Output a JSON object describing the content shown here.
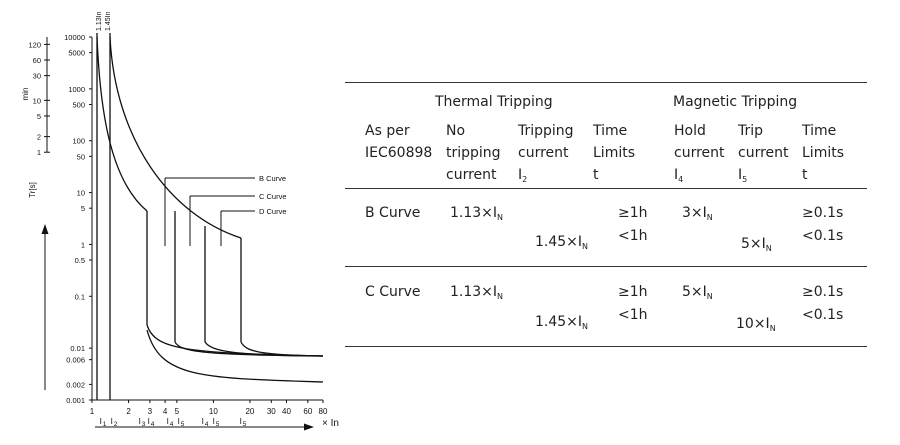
{
  "chart": {
    "y_axis_min_ticks": [
      "120",
      "60",
      "30",
      "10",
      "5",
      "2",
      "1"
    ],
    "y_axis_min_label": "min",
    "y_axis_sec_ticks": [
      "10000",
      "5000",
      "1000",
      "500",
      "100",
      "50",
      "10",
      "5",
      "1",
      "0.5",
      "0.1",
      "0.01",
      "0.006",
      "0.002",
      "0.001"
    ],
    "y_axis_sec_label": "Tr[s]",
    "x_axis_ticks": [
      "1",
      "2",
      "3",
      "4",
      "5",
      "10",
      "20",
      "30",
      "40",
      "60",
      "80"
    ],
    "x_axis_label": "× In",
    "top_labels": [
      "1.13In",
      "1.45In"
    ],
    "current_markers": [
      {
        "letter": "I",
        "sub": "1"
      },
      {
        "letter": "I",
        "sub": "2"
      },
      {
        "letter": "I",
        "sub": "3"
      },
      {
        "letter": "I",
        "sub": "4"
      },
      {
        "letter": "I",
        "sub": "4"
      },
      {
        "letter": "I",
        "sub": "5"
      },
      {
        "letter": "I",
        "sub": "4"
      },
      {
        "letter": "I",
        "sub": "5"
      },
      {
        "letter": "I",
        "sub": "5"
      }
    ],
    "curve_labels": [
      "B Curve",
      "C Curve",
      "D Curve"
    ]
  },
  "chart_data": {
    "type": "line",
    "title": "",
    "xlabel": "× In",
    "ylabel": "Tr[s]",
    "x_scale": "log",
    "y_scale": "log",
    "xlim": [
      1,
      80
    ],
    "ylim": [
      0.001,
      10000
    ],
    "series": [
      {
        "name": "B Curve",
        "x": [
          3,
          3.5,
          5,
          10,
          20,
          80
        ],
        "y": [
          0.02,
          0.01,
          0.008,
          0.0075,
          0.007,
          0.0065
        ]
      },
      {
        "name": "C Curve",
        "x": [
          5,
          6,
          10,
          20,
          80
        ],
        "y": [
          0.02,
          0.009,
          0.0075,
          0.007,
          0.0065
        ]
      },
      {
        "name": "D Curve",
        "x": [
          10,
          12,
          20,
          80
        ],
        "y": [
          0.02,
          0.009,
          0.007,
          0.0065
        ]
      }
    ]
  },
  "table": {
    "group_headers": [
      "Thermal Tripping",
      "Magnetic Tripping"
    ],
    "col_headers": [
      [
        "As per",
        "IEC60898"
      ],
      [
        "No",
        "tripping",
        "current"
      ],
      [
        "Tripping",
        "current",
        "I"
      ],
      [
        "Time",
        "Limits",
        "t"
      ],
      [
        "Hold",
        "current",
        "I"
      ],
      [
        "Trip",
        "current",
        "I"
      ],
      [
        "Time",
        "Limits",
        "t"
      ]
    ],
    "col_header_subs": [
      "2",
      "4",
      "5"
    ],
    "rows": [
      {
        "name": "B Curve",
        "no_trip": "1.13×I",
        "trip": "1.45×I",
        "time1": "≥1h",
        "time2": "<1h",
        "hold": "3×I",
        "tripm": "5×I",
        "mtime1": "≥0.1s",
        "mtime2": "<0.1s"
      },
      {
        "name": "C Curve",
        "no_trip": "1.13×I",
        "trip": "1.45×I",
        "time1": "≥1h",
        "time2": "<1h",
        "hold": "5×I",
        "tripm": "10×I",
        "mtime1": "≥0.1s",
        "mtime2": "<0.1s"
      }
    ],
    "sub_n": "N"
  }
}
